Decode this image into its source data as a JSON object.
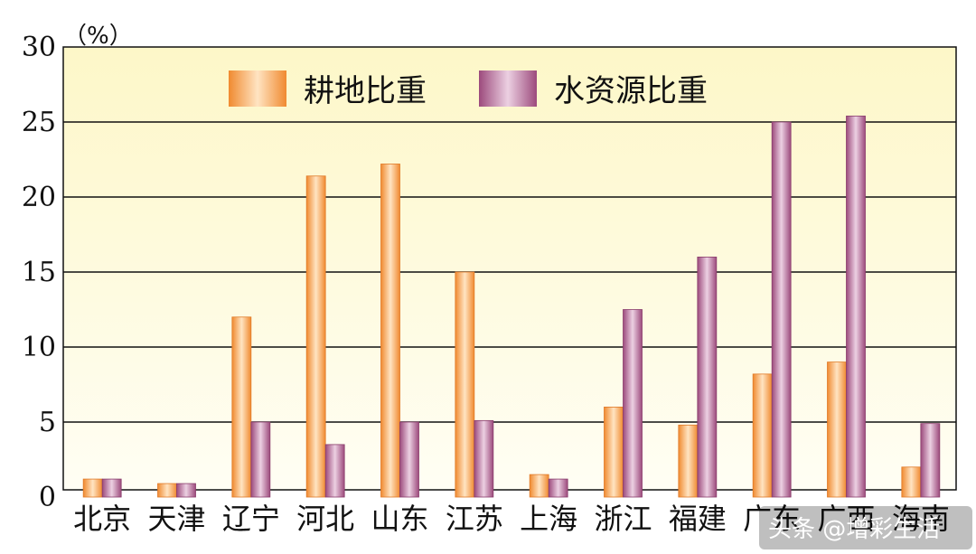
{
  "chart_data": {
    "type": "bar",
    "unit_label": "（%）",
    "categories": [
      "北京",
      "天津",
      "辽宁",
      "河北",
      "山东",
      "江苏",
      "上海",
      "浙江",
      "福建",
      "广东",
      "广西",
      "海南"
    ],
    "series": [
      {
        "name": "耕地比重",
        "color": "#f4a24c",
        "values": [
          1.2,
          0.9,
          12.0,
          21.4,
          22.2,
          15.0,
          1.5,
          6.0,
          4.8,
          8.2,
          9.0,
          2.0
        ]
      },
      {
        "name": "水资源比重",
        "color": "#b0608e",
        "values": [
          1.2,
          0.9,
          5.0,
          3.5,
          5.0,
          5.1,
          1.2,
          12.5,
          16.0,
          25.0,
          25.4,
          4.9
        ]
      }
    ],
    "ylim": [
      0,
      30
    ],
    "yticks": [
      0,
      5,
      10,
      15,
      20,
      25,
      30
    ],
    "grid": true,
    "legend_position": "top"
  },
  "watermark": "头条 @增彩生活",
  "colors": {
    "plot_bg_top": "#fdf8cf",
    "plot_bg_bottom": "#fffef2",
    "grid": "#111111"
  }
}
